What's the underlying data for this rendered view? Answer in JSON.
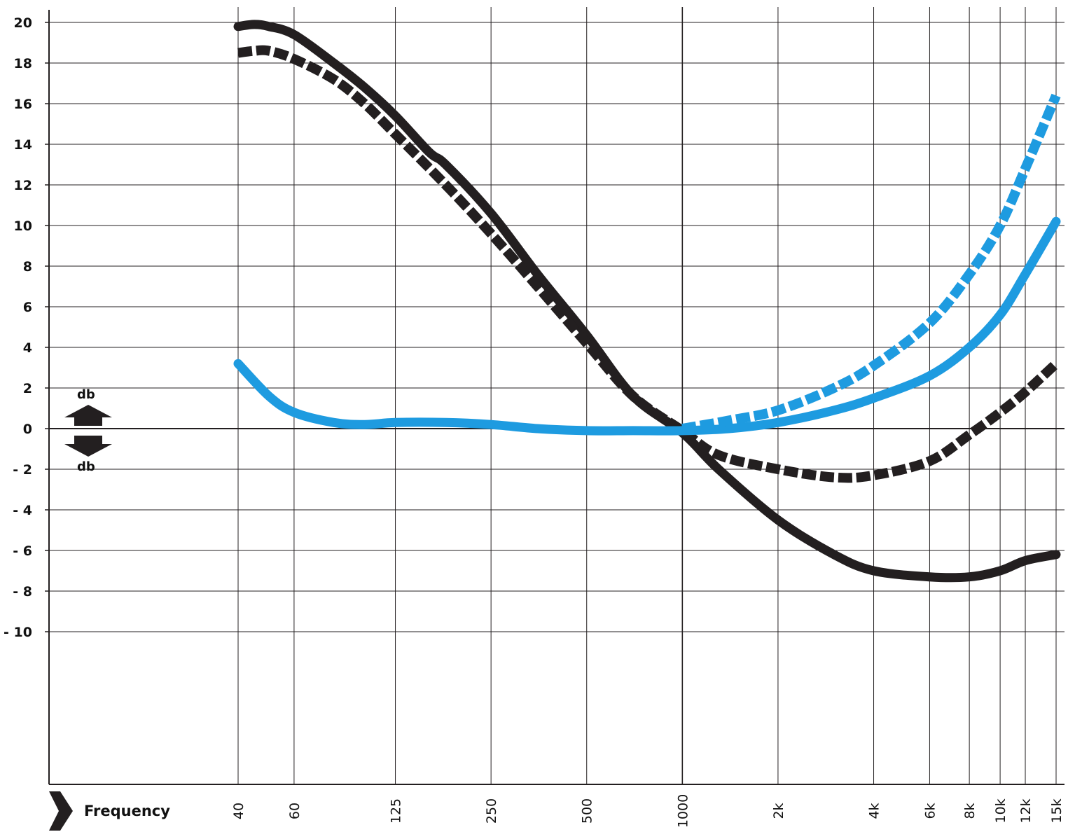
{
  "chart_data": {
    "type": "line",
    "title": "",
    "xlabel": "Frequency",
    "ylabel": "db",
    "ylabel_down": "db",
    "x_scale": "log",
    "xlim": [
      40,
      15000
    ],
    "ylim": [
      -10,
      20
    ],
    "grid": true,
    "legend": "none",
    "x_ticks": [
      {
        "value": 40,
        "label": "40"
      },
      {
        "value": 60,
        "label": "60"
      },
      {
        "value": 125,
        "label": "125"
      },
      {
        "value": 250,
        "label": "250"
      },
      {
        "value": 500,
        "label": "500"
      },
      {
        "value": 1000,
        "label": "1000"
      },
      {
        "value": 2000,
        "label": "2k"
      },
      {
        "value": 4000,
        "label": "4k"
      },
      {
        "value": 6000,
        "label": "6k"
      },
      {
        "value": 8000,
        "label": "8k"
      },
      {
        "value": 10000,
        "label": "10k"
      },
      {
        "value": 12000,
        "label": "12k"
      },
      {
        "value": 15000,
        "label": "15k"
      }
    ],
    "y_ticks": [
      {
        "value": 20,
        "label": "20"
      },
      {
        "value": 18,
        "label": "18"
      },
      {
        "value": 16,
        "label": "16"
      },
      {
        "value": 14,
        "label": "14"
      },
      {
        "value": 12,
        "label": "12"
      },
      {
        "value": 10,
        "label": "10"
      },
      {
        "value": 8,
        "label": "8"
      },
      {
        "value": 6,
        "label": "6"
      },
      {
        "value": 4,
        "label": "4"
      },
      {
        "value": 2,
        "label": "2"
      },
      {
        "value": 0,
        "label": "0"
      },
      {
        "value": -2,
        "label": "- 2"
      },
      {
        "value": -4,
        "label": "- 4"
      },
      {
        "value": -6,
        "label": "- 6"
      },
      {
        "value": -8,
        "label": "- 8"
      },
      {
        "value": -10,
        "label": "- 10"
      }
    ],
    "series": [
      {
        "color": "#231f20",
        "style": "solid",
        "points": [
          [
            40,
            19.8
          ],
          [
            45,
            19.9
          ],
          [
            50,
            19.8
          ],
          [
            60,
            19.4
          ],
          [
            80,
            18.0
          ],
          [
            100,
            16.8
          ],
          [
            125,
            15.4
          ],
          [
            160,
            13.6
          ],
          [
            180,
            13.0
          ],
          [
            250,
            10.6
          ],
          [
            350,
            7.6
          ],
          [
            500,
            4.6
          ],
          [
            700,
            1.6
          ],
          [
            1000,
            -0.2
          ],
          [
            1300,
            -2.0
          ],
          [
            2000,
            -4.5
          ],
          [
            3000,
            -6.2
          ],
          [
            4000,
            -7.0
          ],
          [
            6000,
            -7.3
          ],
          [
            8000,
            -7.3
          ],
          [
            10000,
            -7.0
          ],
          [
            12000,
            -6.5
          ],
          [
            15000,
            -6.2
          ]
        ]
      },
      {
        "color": "#231f20",
        "style": "dashed",
        "points": [
          [
            40,
            18.5
          ],
          [
            45,
            18.6
          ],
          [
            50,
            18.6
          ],
          [
            60,
            18.2
          ],
          [
            80,
            17.2
          ],
          [
            100,
            16.0
          ],
          [
            125,
            14.5
          ],
          [
            180,
            12.0
          ],
          [
            250,
            9.6
          ],
          [
            350,
            7.0
          ],
          [
            500,
            4.2
          ],
          [
            700,
            1.6
          ],
          [
            1000,
            -0.1
          ],
          [
            1300,
            -1.3
          ],
          [
            2000,
            -2.0
          ],
          [
            3000,
            -2.4
          ],
          [
            4000,
            -2.3
          ],
          [
            6000,
            -1.6
          ],
          [
            8000,
            -0.3
          ],
          [
            10000,
            0.8
          ],
          [
            12000,
            1.8
          ],
          [
            15000,
            3.2
          ]
        ]
      },
      {
        "color": "#1e9be0",
        "style": "solid",
        "points": [
          [
            40,
            3.2
          ],
          [
            50,
            1.6
          ],
          [
            60,
            0.8
          ],
          [
            80,
            0.3
          ],
          [
            100,
            0.2
          ],
          [
            125,
            0.3
          ],
          [
            180,
            0.3
          ],
          [
            250,
            0.2
          ],
          [
            350,
            0.0
          ],
          [
            500,
            -0.1
          ],
          [
            700,
            -0.1
          ],
          [
            1000,
            -0.1
          ],
          [
            1400,
            0.0
          ],
          [
            2000,
            0.3
          ],
          [
            3000,
            0.9
          ],
          [
            4000,
            1.5
          ],
          [
            6000,
            2.6
          ],
          [
            8000,
            4.0
          ],
          [
            10000,
            5.6
          ],
          [
            12000,
            7.6
          ],
          [
            15000,
            10.2
          ]
        ]
      },
      {
        "color": "#1e9be0",
        "style": "dashed",
        "points": [
          [
            1000,
            0.0
          ],
          [
            1400,
            0.4
          ],
          [
            2000,
            0.9
          ],
          [
            3000,
            2.0
          ],
          [
            4000,
            3.1
          ],
          [
            6000,
            5.2
          ],
          [
            8000,
            7.6
          ],
          [
            10000,
            10.0
          ],
          [
            12000,
            12.8
          ],
          [
            15000,
            16.4
          ]
        ]
      }
    ]
  }
}
